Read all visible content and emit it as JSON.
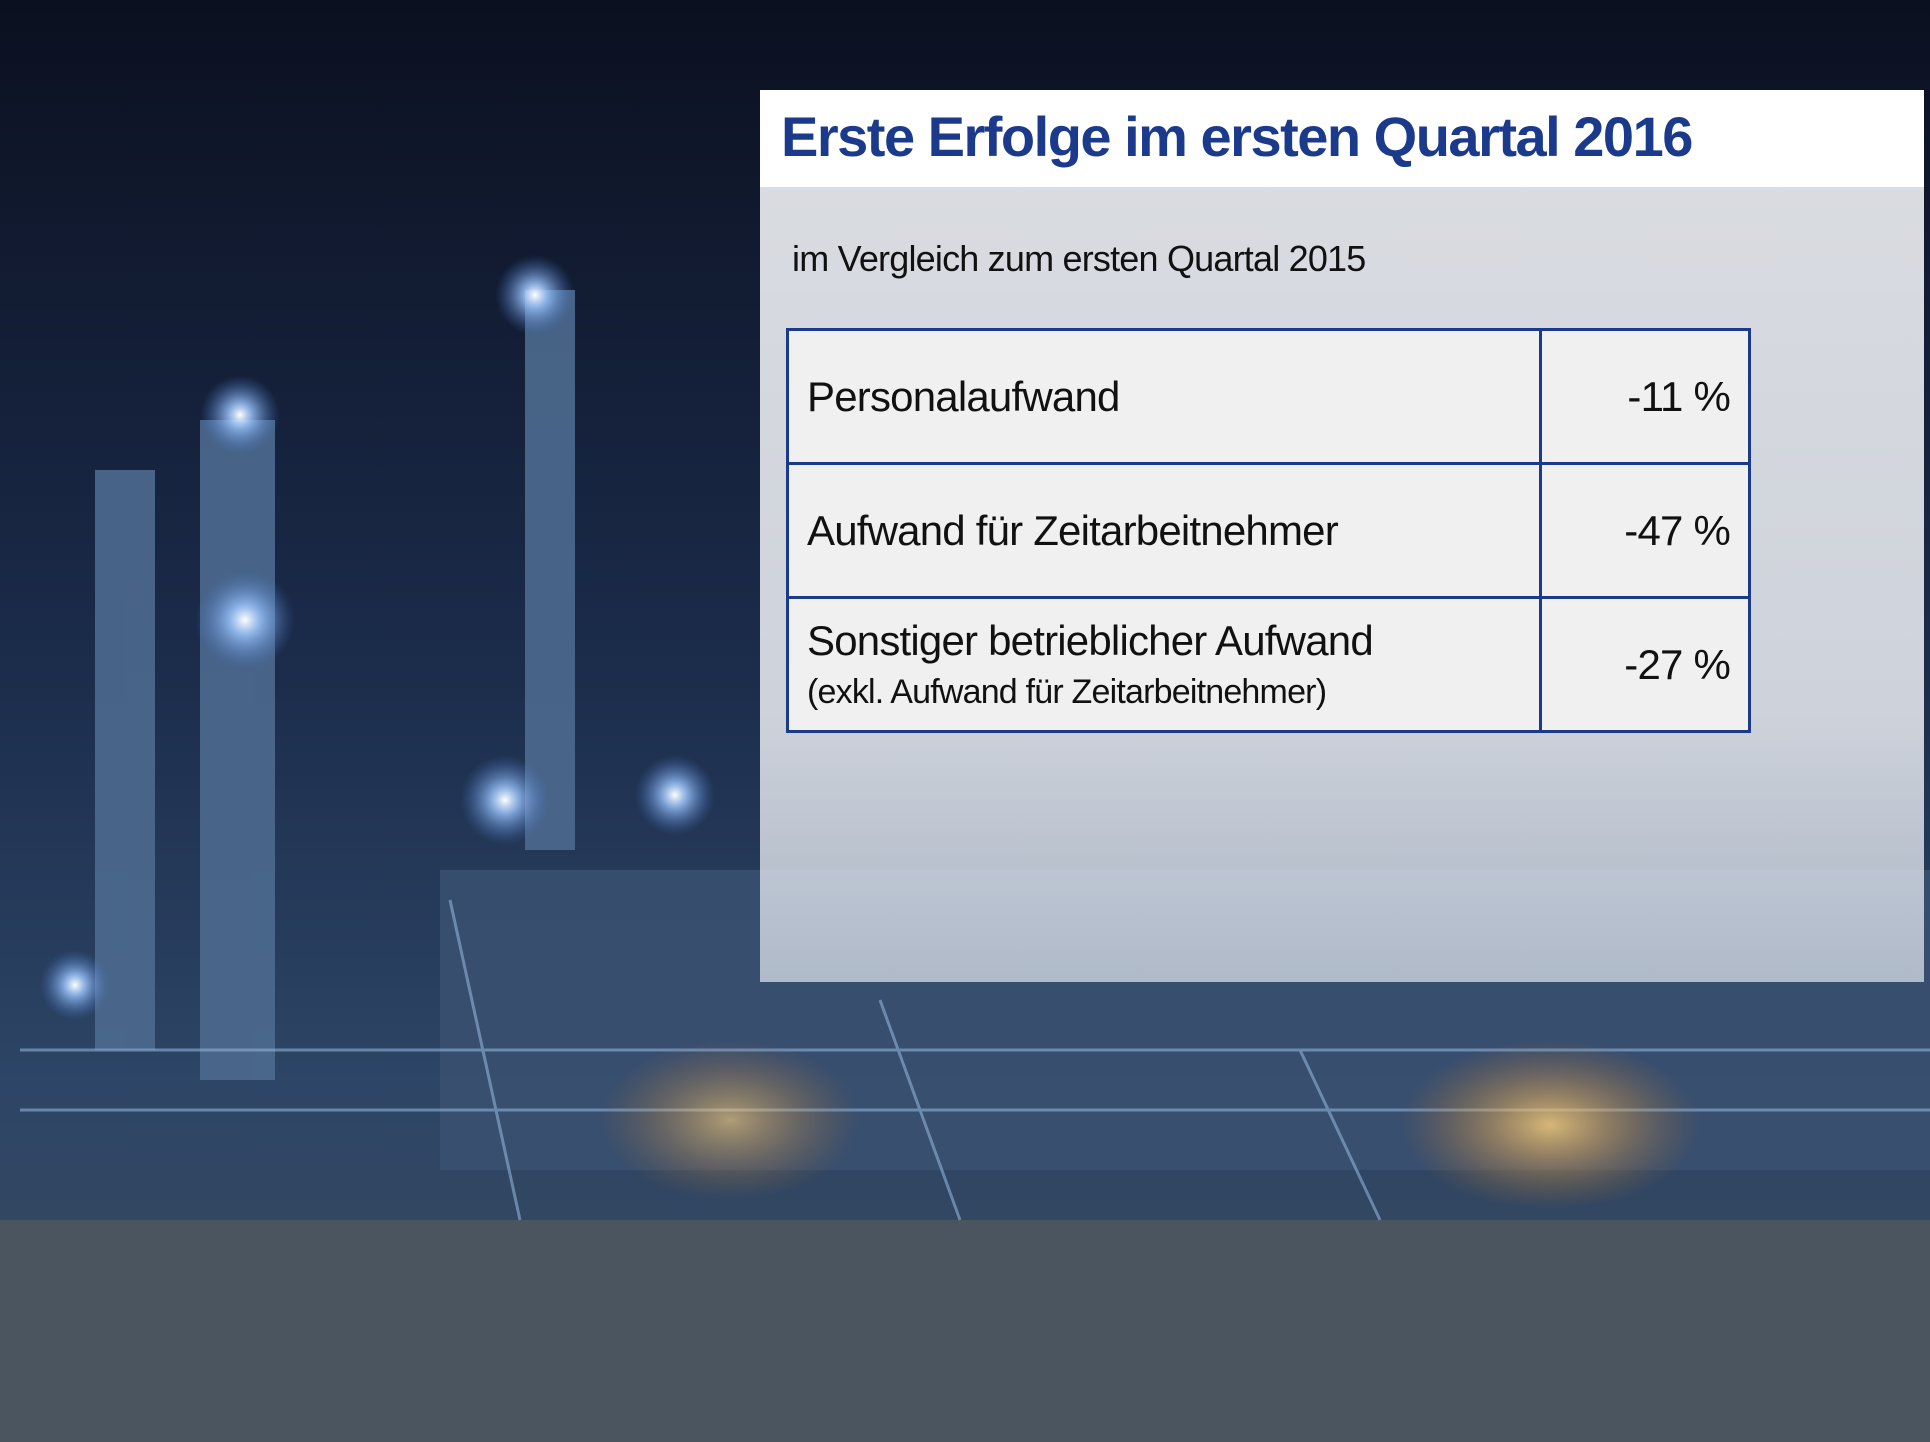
{
  "header": {
    "title": "Erste Erfolge im ersten Quartal 2016",
    "subtitle": "im Vergleich zum ersten Quartal 2015"
  },
  "table": {
    "rows": [
      {
        "label": "Personalaufwand",
        "value": "-11 %"
      },
      {
        "label": "Aufwand für Zeitarbeitnehmer",
        "value": "-47 %"
      },
      {
        "label": "Sonstiger betrieblicher Aufwand",
        "note": "(exkl. Aufwand für Zeitarbeitnehmer)",
        "value": "-27 %"
      }
    ]
  }
}
